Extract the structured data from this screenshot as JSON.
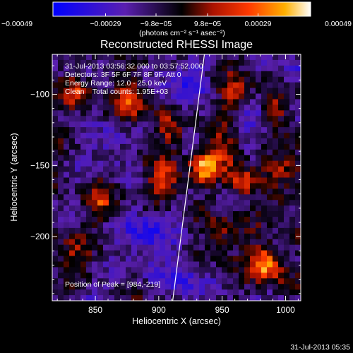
{
  "chart_data": {
    "type": "heatmap",
    "title": "Reconstructed RHESSI Image",
    "xlabel": "Heliocentric X (arcsec)",
    "ylabel": "Heliocentric Y (arcsec)",
    "xlim": [
      816,
      1012
    ],
    "ylim": [
      -245,
      -72
    ],
    "x_ticks": [
      850,
      900,
      950,
      1000
    ],
    "x_tick_labels": [
      "850",
      "900",
      "950",
      "1000"
    ],
    "y_ticks": [
      -100,
      -150,
      -200
    ],
    "y_tick_labels": [
      "−100",
      "−150",
      "−200"
    ],
    "colorbar": {
      "range": [
        -0.00049,
        0.00049
      ],
      "ticks": [
        -0.00049,
        -0.00029,
        -9.8e-05,
        9.8e-05,
        0.00029,
        0.00049
      ],
      "tick_labels": [
        "−0.00049",
        "−0.00029",
        "−9.8e−05",
        "9.8e−05",
        "0.00029",
        "0.00049"
      ],
      "units": "(photons cm⁻² s⁻¹ asec⁻²)",
      "colors": [
        "#0000ff",
        "#5a1fb0",
        "#000000",
        "#aa1200",
        "#ff3a00",
        "#ffb000",
        "#ffffff"
      ]
    },
    "annotations": {
      "time_range": "31-Jul-2013 03:56:32.000 to 03:57:52.000",
      "detectors": "Detectors: 3F 5F 6F 7F 8F 9F, Att 0",
      "energy": "Energy Range: 12.0 - 25.0 keV",
      "clean": "Clean    Total counts: 1.95E+03",
      "peak": "Position of Peak = [984,-219]"
    },
    "sources": [
      {
        "x": 984,
        "y": -219,
        "amp": 1.0,
        "w": 9
      },
      {
        "x": 936,
        "y": -152,
        "amp": 0.85,
        "w": 7
      },
      {
        "x": 952,
        "y": -140,
        "amp": 0.55,
        "w": 10
      },
      {
        "x": 965,
        "y": -162,
        "amp": 0.55,
        "w": 8
      },
      {
        "x": 905,
        "y": -160,
        "amp": 0.65,
        "w": 9
      },
      {
        "x": 880,
        "y": -105,
        "amp": 0.65,
        "w": 10
      },
      {
        "x": 835,
        "y": -100,
        "amp": 0.55,
        "w": 8
      },
      {
        "x": 855,
        "y": -175,
        "amp": 0.55,
        "w": 8
      },
      {
        "x": 830,
        "y": -215,
        "amp": 0.45,
        "w": 10
      },
      {
        "x": 910,
        "y": -125,
        "amp": 0.45,
        "w": 8
      },
      {
        "x": 960,
        "y": -100,
        "amp": 0.45,
        "w": 9
      },
      {
        "x": 1000,
        "y": -150,
        "amp": 0.5,
        "w": 10
      },
      {
        "x": 990,
        "y": -110,
        "amp": 0.45,
        "w": 8
      },
      {
        "x": 950,
        "y": -200,
        "amp": 0.4,
        "w": 9
      },
      {
        "x": 995,
        "y": -180,
        "amp": 0.35,
        "w": 7
      },
      {
        "x": 920,
        "y": -90,
        "amp": -0.45,
        "w": 12
      },
      {
        "x": 890,
        "y": -200,
        "amp": -0.5,
        "w": 14
      },
      {
        "x": 860,
        "y": -135,
        "amp": -0.35,
        "w": 10
      },
      {
        "x": 975,
        "y": -120,
        "amp": -0.35,
        "w": 10
      },
      {
        "x": 920,
        "y": -230,
        "amp": -0.4,
        "w": 12
      },
      {
        "x": 845,
        "y": -240,
        "amp": -0.3,
        "w": 8
      },
      {
        "x": 1005,
        "y": -85,
        "amp": -0.3,
        "w": 8
      }
    ],
    "limb_line": [
      [
        911,
        -245
      ],
      [
        936,
        -72
      ]
    ],
    "grid": false
  },
  "footer": {
    "timestamp": "31-Jul-2013 05:35"
  }
}
